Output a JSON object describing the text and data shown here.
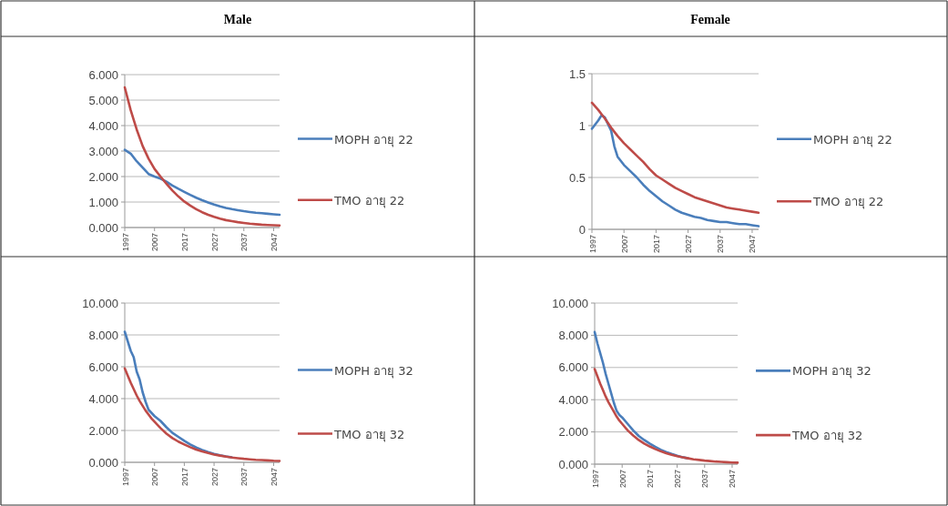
{
  "chart_data": [
    {
      "type": "line",
      "title": "Male",
      "x": [
        1997,
        1999,
        2001,
        2003,
        2005,
        2007,
        2009,
        2011,
        2013,
        2015,
        2017,
        2019,
        2021,
        2023,
        2025,
        2027,
        2029,
        2031,
        2033,
        2035,
        2037,
        2039,
        2041,
        2043,
        2045,
        2047,
        2049
      ],
      "xlim": [
        1997,
        2049
      ],
      "xticks": [
        1997,
        2007,
        2017,
        2027,
        2037,
        2047
      ],
      "ylim": [
        0,
        6
      ],
      "yticks": [
        {
          "value": 0,
          "label": "0.000"
        },
        {
          "value": 1,
          "label": "1.000"
        },
        {
          "value": 2,
          "label": "2.000"
        },
        {
          "value": 3,
          "label": "3.000"
        },
        {
          "value": 4,
          "label": "4.000"
        },
        {
          "value": 5,
          "label": "5.000"
        },
        {
          "value": 6,
          "label": "6.000"
        }
      ],
      "grid": "y",
      "legend": "right",
      "series": [
        {
          "name": "MOPH อายุ 22",
          "color": "#4a7ebb",
          "values": [
            3.05,
            2.9,
            2.6,
            2.35,
            2.1,
            2.0,
            1.92,
            1.8,
            1.65,
            1.52,
            1.4,
            1.28,
            1.17,
            1.07,
            0.98,
            0.9,
            0.83,
            0.77,
            0.72,
            0.68,
            0.64,
            0.61,
            0.58,
            0.56,
            0.54,
            0.52,
            0.5
          ]
        },
        {
          "name": "TMO อายุ 22",
          "color": "#be4b48",
          "values": [
            5.5,
            4.6,
            3.85,
            3.2,
            2.7,
            2.3,
            2.0,
            1.72,
            1.45,
            1.22,
            1.02,
            0.86,
            0.72,
            0.6,
            0.5,
            0.42,
            0.35,
            0.29,
            0.25,
            0.21,
            0.18,
            0.15,
            0.13,
            0.11,
            0.1,
            0.09,
            0.08
          ]
        }
      ]
    },
    {
      "type": "line",
      "title": "Female",
      "x": [
        1997,
        1999,
        2000,
        2001,
        2003,
        2004,
        2005,
        2007,
        2009,
        2011,
        2013,
        2015,
        2017,
        2019,
        2021,
        2023,
        2025,
        2027,
        2029,
        2031,
        2033,
        2035,
        2037,
        2039,
        2041,
        2043,
        2045,
        2047,
        2049
      ],
      "xlim": [
        1997,
        2049
      ],
      "xticks": [
        1997,
        2007,
        2017,
        2027,
        2037,
        2047
      ],
      "ylim": [
        0,
        1.5
      ],
      "yticks": [
        0,
        0.5,
        1,
        1.5
      ],
      "grid": "y",
      "legend": "right",
      "series": [
        {
          "name": "MOPH อายุ 22",
          "color": "#4a7ebb",
          "values": [
            0.97,
            1.05,
            1.1,
            1.08,
            0.95,
            0.8,
            0.7,
            0.62,
            0.56,
            0.5,
            0.43,
            0.37,
            0.32,
            0.27,
            0.23,
            0.19,
            0.16,
            0.14,
            0.12,
            0.11,
            0.09,
            0.08,
            0.07,
            0.07,
            0.06,
            0.05,
            0.05,
            0.04,
            0.03
          ]
        },
        {
          "name": "TMO อายุ 22",
          "color": "#be4b48",
          "values": [
            1.22,
            1.15,
            1.11,
            1.07,
            0.98,
            0.94,
            0.9,
            0.83,
            0.77,
            0.71,
            0.65,
            0.58,
            0.52,
            0.48,
            0.44,
            0.4,
            0.37,
            0.34,
            0.31,
            0.29,
            0.27,
            0.25,
            0.23,
            0.21,
            0.2,
            0.19,
            0.18,
            0.17,
            0.16
          ]
        }
      ]
    },
    {
      "type": "line",
      "x": [
        1997,
        1998,
        1999,
        2000,
        2001,
        2002,
        2003,
        2004,
        2005,
        2006,
        2007,
        2009,
        2011,
        2013,
        2015,
        2017,
        2019,
        2021,
        2023,
        2025,
        2027,
        2029,
        2031,
        2033,
        2035,
        2037,
        2039,
        2041,
        2043,
        2045,
        2047,
        2049
      ],
      "xlim": [
        1997,
        2049
      ],
      "xticks": [
        1997,
        2007,
        2017,
        2027,
        2037,
        2047
      ],
      "ylim": [
        0,
        10
      ],
      "yticks": [
        {
          "value": 0,
          "label": "0.000"
        },
        {
          "value": 2,
          "label": "2.000"
        },
        {
          "value": 4,
          "label": "4.000"
        },
        {
          "value": 6,
          "label": "6.000"
        },
        {
          "value": 8,
          "label": "8.000"
        },
        {
          "value": 10,
          "label": "10.000"
        }
      ],
      "grid": "y",
      "legend": "right",
      "series": [
        {
          "name": "MOPH อายุ 32",
          "color": "#4a7ebb",
          "values": [
            8.2,
            7.6,
            7.0,
            6.6,
            5.7,
            5.2,
            4.4,
            3.8,
            3.3,
            3.1,
            2.9,
            2.6,
            2.2,
            1.85,
            1.6,
            1.35,
            1.12,
            0.93,
            0.77,
            0.64,
            0.53,
            0.44,
            0.37,
            0.31,
            null,
            null,
            null,
            null,
            null,
            null,
            null,
            null
          ]
        },
        {
          "name": "TMO อายุ 32",
          "color": "#be4b48",
          "values": [
            5.9,
            5.45,
            5.0,
            4.6,
            4.2,
            3.85,
            3.55,
            3.25,
            3.0,
            2.75,
            2.55,
            2.15,
            1.8,
            1.52,
            1.3,
            1.12,
            0.95,
            0.8,
            0.68,
            0.58,
            0.49,
            0.42,
            0.36,
            0.3,
            0.26,
            0.22,
            0.19,
            0.16,
            0.14,
            0.12,
            0.1,
            0.09
          ]
        }
      ]
    },
    {
      "type": "line",
      "x": [
        1997,
        1998,
        1999,
        2000,
        2001,
        2002,
        2003,
        2004,
        2005,
        2006,
        2007,
        2009,
        2011,
        2013,
        2015,
        2017,
        2019,
        2021,
        2023,
        2025,
        2027,
        2029,
        2031,
        2033,
        2035,
        2037,
        2039,
        2041,
        2043,
        2045,
        2047,
        2049
      ],
      "xlim": [
        1997,
        2049
      ],
      "xticks": [
        1997,
        2007,
        2017,
        2027,
        2037,
        2047
      ],
      "ylim": [
        0,
        10
      ],
      "yticks": [
        {
          "value": 0,
          "label": "0.000"
        },
        {
          "value": 2,
          "label": "2.000"
        },
        {
          "value": 4,
          "label": "4.000"
        },
        {
          "value": 6,
          "label": "6.000"
        },
        {
          "value": 8,
          "label": "8.000"
        },
        {
          "value": 10,
          "label": "10.000"
        }
      ],
      "grid": "y",
      "legend": "right",
      "series": [
        {
          "name": "MOPH อายุ 32",
          "color": "#4a7ebb",
          "values": [
            8.2,
            7.5,
            6.9,
            6.3,
            5.6,
            5.0,
            4.4,
            3.8,
            3.3,
            3.05,
            2.9,
            2.5,
            2.1,
            1.75,
            1.5,
            1.28,
            1.08,
            0.9,
            0.75,
            0.63,
            0.52,
            0.43,
            0.36,
            null,
            null,
            null,
            null,
            null,
            null,
            null,
            null,
            null
          ]
        },
        {
          "name": "TMO อายุ 32",
          "color": "#be4b48",
          "values": [
            5.9,
            5.45,
            5.0,
            4.6,
            4.2,
            3.85,
            3.55,
            3.25,
            2.95,
            2.7,
            2.5,
            2.1,
            1.78,
            1.5,
            1.28,
            1.1,
            0.94,
            0.8,
            0.68,
            0.58,
            0.49,
            0.42,
            0.36,
            0.3,
            0.26,
            0.22,
            0.19,
            0.16,
            0.14,
            0.12,
            0.1,
            0.09
          ]
        }
      ]
    }
  ]
}
